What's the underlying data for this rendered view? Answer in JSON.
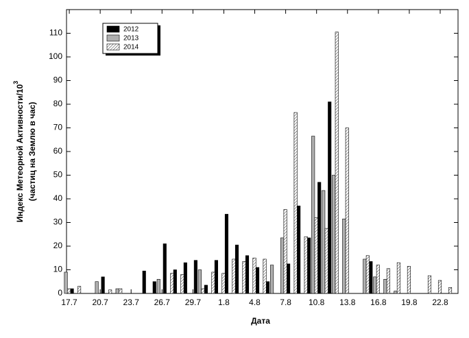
{
  "chart_data": {
    "type": "bar",
    "x_label": "Дата",
    "y_label": "Индекс Метеорной Активности/10",
    "y_label_exponent": "3",
    "y_label_line2": "(частиц на Землю в час)",
    "categories": [
      "17.7",
      null,
      null,
      "20.7",
      null,
      null,
      "23.7",
      null,
      null,
      "26.7",
      null,
      null,
      "29.7",
      null,
      null,
      "1.8",
      null,
      null,
      "4.8",
      null,
      null,
      "7.8",
      null,
      null,
      "10.8",
      null,
      null,
      "13.8",
      null,
      null,
      "16.8",
      null,
      null,
      "19.8",
      null,
      null,
      "22.8",
      null
    ],
    "series": [
      {
        "name": "2012",
        "color": "#000000",
        "fill": "solid",
        "values": [
          2,
          null,
          null,
          7,
          null,
          null,
          null,
          9.5,
          5,
          21,
          10,
          13,
          14,
          3.5,
          14,
          33.5,
          20.5,
          16,
          11,
          5,
          null,
          12.5,
          37,
          23.5,
          47,
          81,
          null,
          null,
          null,
          13.5,
          null,
          null,
          null,
          null,
          null,
          null,
          null,
          null
        ]
      },
      {
        "name": "2013",
        "color": "#b0b0b0",
        "fill": "solid",
        "values": [
          9,
          null,
          null,
          5,
          null,
          2,
          null,
          null,
          null,
          6,
          null,
          null,
          null,
          10,
          null,
          null,
          null,
          null,
          null,
          null,
          12,
          23.5,
          null,
          null,
          66.5,
          43.5,
          50,
          31.5,
          null,
          14.5,
          7,
          6,
          1,
          null,
          null,
          null,
          null,
          null
        ]
      },
      {
        "name": "2014",
        "color": "#ffffff",
        "fill": "hatch",
        "values": [
          2,
          3,
          null,
          null,
          1.5,
          2,
          null,
          null,
          null,
          null,
          8.5,
          8,
          null,
          2,
          9,
          8.5,
          14.5,
          13.5,
          15,
          14.5,
          null,
          35.5,
          76.5,
          24,
          32,
          27.5,
          110.5,
          70,
          null,
          16,
          12,
          10.5,
          13,
          11.5,
          null,
          7.5,
          5.5,
          2.5
        ]
      }
    ],
    "ylim": [
      0,
      120
    ],
    "yticks": [
      0,
      10,
      20,
      30,
      40,
      50,
      60,
      70,
      80,
      90,
      100,
      110
    ],
    "legend": "upper left"
  }
}
